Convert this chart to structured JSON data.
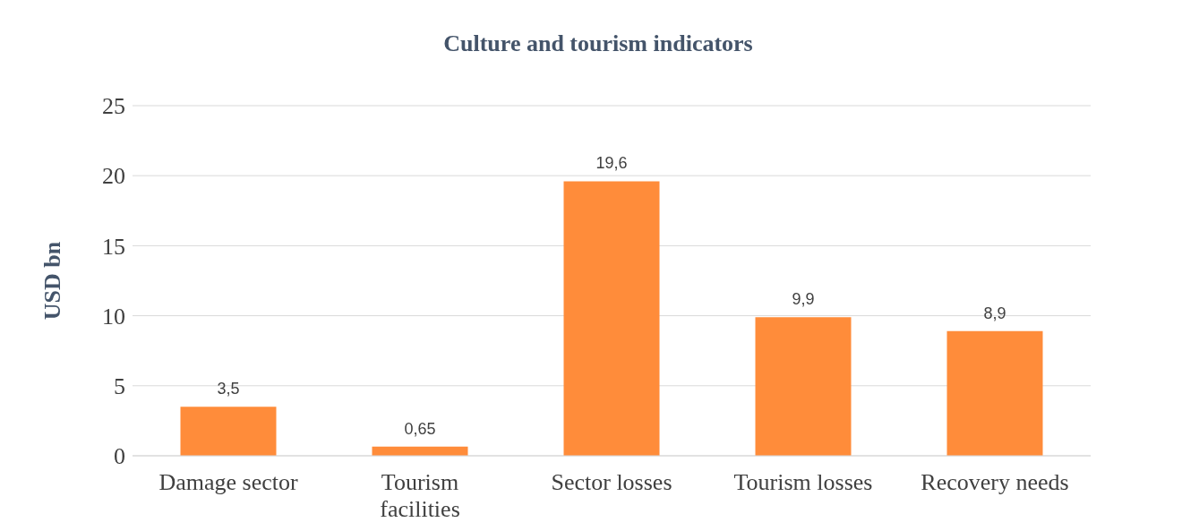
{
  "chart_data": {
    "type": "bar",
    "title": "Culture and tourism indicators",
    "ylabel": "USD bn",
    "categories": [
      "Damage sector",
      "Tourism facilities",
      "Sector losses",
      "Tourism losses",
      "Recovery needs"
    ],
    "values": [
      3.5,
      0.65,
      19.6,
      9.9,
      8.9
    ],
    "value_labels": [
      "3,5",
      "0,65",
      "19,6",
      "9,9",
      "8,9"
    ],
    "color": "#ff8c3a",
    "ylim": [
      0,
      25
    ],
    "yticks": [
      0,
      5,
      10,
      15,
      20,
      25
    ],
    "grid": "y"
  }
}
